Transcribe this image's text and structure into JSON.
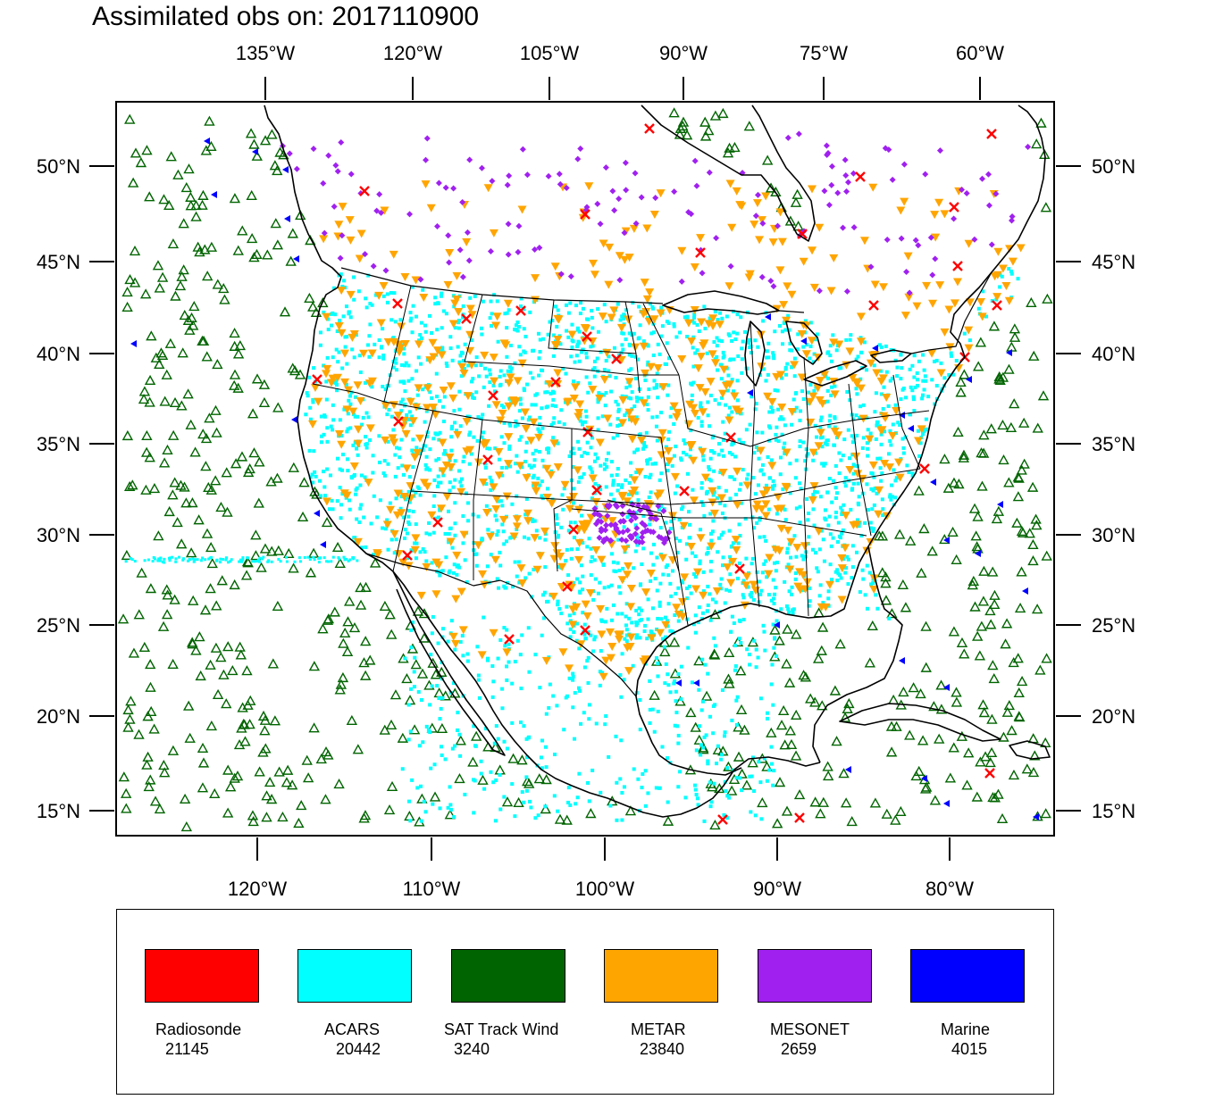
{
  "title": "Assimilated obs on: 2017110900",
  "top_lon_labels": [
    "135°W",
    "120°W",
    "105°W",
    "90°W",
    "75°W",
    "60°W"
  ],
  "bottom_lon_labels": [
    "120°W",
    "110°W",
    "100°W",
    "90°W",
    "80°W"
  ],
  "lat_labels": [
    "50°N",
    "45°N",
    "40°N",
    "35°N",
    "30°N",
    "25°N",
    "20°N",
    "15°N"
  ],
  "colors": {
    "radiosonde": "#ff0000",
    "acars": "#00ffff",
    "sat_track_wind": "#006400",
    "metar": "#ffa500",
    "mesonet": "#a020f0",
    "marine": "#0000ff",
    "land": "#000000",
    "background": "#ffffff"
  },
  "legend": [
    {
      "label": "Radiosonde",
      "count": "21145",
      "color": "#ff0000",
      "symbol": "x-icon"
    },
    {
      "label": "ACARS",
      "count": "20442",
      "color": "#00ffff",
      "symbol": "square-dot-icon"
    },
    {
      "label": "SAT Track Wind",
      "count": "3240",
      "color": "#006400",
      "symbol": "triangle-up-icon"
    },
    {
      "label": "METAR",
      "count": "23840",
      "color": "#ffa500",
      "symbol": "triangle-down-icon"
    },
    {
      "label": "MESONET",
      "count": "2659",
      "color": "#a020f0",
      "symbol": "diamond-icon"
    },
    {
      "label": "Marine",
      "count": "4015",
      "color": "#0000ff",
      "symbol": "triangle-left-icon"
    }
  ]
}
